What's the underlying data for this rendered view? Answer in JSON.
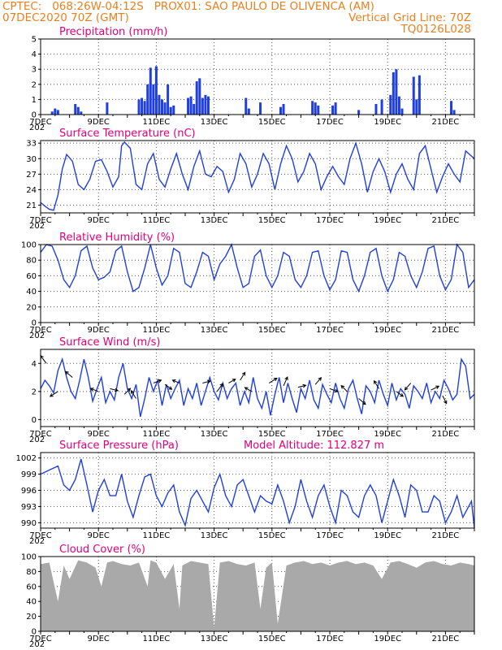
{
  "header": {
    "line1_left": "CPTEC:   068:26W-04:12S   PROX01: SAO PAULO DE OLIVENCA (AM)",
    "line2_left": "07DEC2020 70Z (GMT)",
    "line2_right": "Vertical Grid Line: 70Z",
    "line3_right": "TQ0126L028"
  },
  "colors": {
    "series": "#1f3fe0",
    "bars": "#1f3fe0",
    "cloud": "#a9a9a9",
    "title": "#e0007a",
    "header": "#e8801f"
  },
  "x_axis": {
    "range_days": [
      0,
      15
    ],
    "labels": [
      {
        "d": 0,
        "t": "7DEC"
      },
      {
        "d": 2,
        "t": "9DEC"
      },
      {
        "d": 4,
        "t": "11DEC"
      },
      {
        "d": 6,
        "t": "13DEC"
      },
      {
        "d": 8,
        "t": "15DEC"
      },
      {
        "d": 10,
        "t": "17DEC"
      },
      {
        "d": 12,
        "t": "19DEC"
      },
      {
        "d": 14,
        "t": "21DEC"
      }
    ],
    "year_stub": "202"
  },
  "model_altitude": "Model Altitude: 112.827 m",
  "chart_data": [
    {
      "type": "bar",
      "title": "Precipitation (mm/h)",
      "ylim": [
        0,
        5
      ],
      "yticks": [
        "0",
        "1",
        "2",
        "3",
        "4",
        "5"
      ],
      "x": [
        0.4,
        0.5,
        0.6,
        1.2,
        1.3,
        1.4,
        2.3,
        3.4,
        3.5,
        3.6,
        3.7,
        3.8,
        3.9,
        4.0,
        4.1,
        4.2,
        4.3,
        4.4,
        4.5,
        4.6,
        5.1,
        5.2,
        5.3,
        5.4,
        5.5,
        5.6,
        5.7,
        5.8,
        7.1,
        7.2,
        7.6,
        8.3,
        8.4,
        9.4,
        9.5,
        9.6,
        10.1,
        10.2,
        11.0,
        11.6,
        11.8,
        12.1,
        12.2,
        12.3,
        12.4,
        12.5,
        12.9,
        13.0,
        13.1,
        14.2,
        14.3
      ],
      "values": [
        0.2,
        0.4,
        0.3,
        0.7,
        0.5,
        0.2,
        0.8,
        1.0,
        1.1,
        0.9,
        2.0,
        3.1,
        2.0,
        3.2,
        1.3,
        1.0,
        0.8,
        2.0,
        0.5,
        0.6,
        1.1,
        1.2,
        0.7,
        2.2,
        2.4,
        1.1,
        1.3,
        1.2,
        1.1,
        0.4,
        0.8,
        0.5,
        0.7,
        0.9,
        0.8,
        0.6,
        0.6,
        0.8,
        0.3,
        0.7,
        1.0,
        1.3,
        2.8,
        3.0,
        1.2,
        0.4,
        2.5,
        1.0,
        2.6,
        0.9,
        0.3
      ]
    },
    {
      "type": "line",
      "title": "Surface Temperature (nC)",
      "ylim": [
        19.5,
        33.5
      ],
      "yticks": [
        "21",
        "24",
        "27",
        "30",
        "33"
      ],
      "x": [
        0,
        0.15,
        0.3,
        0.45,
        0.6,
        0.75,
        0.9,
        1.1,
        1.3,
        1.5,
        1.7,
        1.9,
        2.1,
        2.3,
        2.5,
        2.7,
        2.8,
        2.9,
        3.1,
        3.3,
        3.5,
        3.7,
        3.9,
        4.1,
        4.3,
        4.5,
        4.7,
        4.9,
        5.1,
        5.3,
        5.5,
        5.7,
        5.9,
        6.1,
        6.3,
        6.5,
        6.7,
        6.9,
        7.1,
        7.3,
        7.5,
        7.7,
        7.9,
        8.1,
        8.3,
        8.5,
        8.7,
        8.9,
        9.1,
        9.3,
        9.5,
        9.7,
        9.9,
        10.1,
        10.3,
        10.5,
        10.7,
        10.9,
        11.1,
        11.3,
        11.5,
        11.7,
        11.9,
        12.1,
        12.3,
        12.5,
        12.7,
        12.9,
        13.1,
        13.3,
        13.5,
        13.7,
        13.9,
        14.1,
        14.3,
        14.5,
        14.7,
        14.9,
        15
      ],
      "values": [
        21.5,
        20.8,
        20.2,
        20.0,
        23.0,
        28.0,
        30.8,
        29.5,
        25.0,
        24.0,
        26.0,
        29.5,
        29.8,
        27.5,
        24.5,
        26.5,
        32.5,
        33.2,
        32.0,
        25.0,
        24.0,
        29.0,
        31.0,
        26.0,
        24.5,
        28.0,
        31.0,
        27.0,
        24.0,
        28.5,
        31.5,
        27.0,
        26.5,
        28.5,
        27.5,
        23.5,
        26.0,
        31.0,
        29.0,
        24.5,
        27.0,
        31.0,
        29.0,
        24.0,
        29.0,
        32.5,
        30.0,
        25.5,
        27.5,
        31.0,
        29.0,
        24.0,
        26.5,
        28.5,
        26.5,
        25.0,
        30.0,
        33.0,
        29.0,
        23.5,
        27.5,
        30.0,
        27.5,
        23.5,
        27.0,
        29.0,
        26.0,
        24.0,
        31.0,
        32.5,
        28.0,
        23.5,
        26.5,
        29.0,
        27.0,
        25.5,
        31.5,
        30.5,
        30.0
      ]
    },
    {
      "type": "line",
      "title": "Relative Humidity (%)",
      "ylim": [
        0,
        100
      ],
      "yticks": [
        "0",
        "20",
        "40",
        "60",
        "80",
        "100"
      ],
      "x": [
        0,
        0.2,
        0.4,
        0.6,
        0.8,
        1.0,
        1.2,
        1.4,
        1.6,
        1.8,
        2.0,
        2.2,
        2.4,
        2.6,
        2.8,
        3.0,
        3.2,
        3.4,
        3.6,
        3.8,
        4.0,
        4.2,
        4.4,
        4.6,
        4.8,
        5.0,
        5.2,
        5.4,
        5.6,
        5.8,
        6.0,
        6.2,
        6.4,
        6.6,
        6.8,
        7.0,
        7.2,
        7.4,
        7.6,
        7.8,
        8.0,
        8.2,
        8.4,
        8.6,
        8.8,
        9.0,
        9.2,
        9.4,
        9.6,
        9.8,
        10.0,
        10.2,
        10.4,
        10.6,
        10.8,
        11.0,
        11.2,
        11.4,
        11.6,
        11.8,
        12.0,
        12.2,
        12.4,
        12.6,
        12.8,
        13.0,
        13.2,
        13.4,
        13.6,
        13.8,
        14.0,
        14.2,
        14.4,
        14.6,
        14.8,
        15
      ],
      "values": [
        90,
        100,
        98,
        80,
        55,
        45,
        60,
        92,
        98,
        70,
        55,
        58,
        65,
        92,
        98,
        65,
        40,
        45,
        70,
        100,
        70,
        48,
        60,
        95,
        90,
        50,
        45,
        65,
        90,
        85,
        55,
        75,
        85,
        100,
        70,
        45,
        50,
        85,
        93,
        60,
        45,
        60,
        90,
        85,
        55,
        45,
        60,
        90,
        92,
        60,
        42,
        55,
        92,
        90,
        55,
        40,
        60,
        90,
        95,
        60,
        40,
        55,
        90,
        85,
        60,
        45,
        65,
        95,
        98,
        60,
        42,
        55,
        100,
        90,
        45,
        55
      ]
    },
    {
      "type": "line",
      "title": "Surface Wind (m/s)",
      "ylim": [
        -0.5,
        5
      ],
      "yticks": [
        "0",
        "2",
        "4"
      ],
      "x": [
        0,
        0.15,
        0.3,
        0.45,
        0.6,
        0.75,
        0.9,
        1.05,
        1.2,
        1.35,
        1.5,
        1.65,
        1.8,
        1.95,
        2.1,
        2.25,
        2.4,
        2.55,
        2.7,
        2.85,
        3.0,
        3.15,
        3.3,
        3.45,
        3.6,
        3.75,
        3.9,
        4.05,
        4.2,
        4.35,
        4.5,
        4.65,
        4.8,
        4.95,
        5.1,
        5.25,
        5.4,
        5.55,
        5.7,
        5.85,
        6.0,
        6.15,
        6.3,
        6.45,
        6.6,
        6.75,
        6.9,
        7.05,
        7.2,
        7.35,
        7.5,
        7.65,
        7.8,
        7.95,
        8.1,
        8.25,
        8.4,
        8.55,
        8.7,
        8.85,
        9.0,
        9.15,
        9.3,
        9.45,
        9.6,
        9.75,
        9.9,
        10.05,
        10.2,
        10.35,
        10.5,
        10.65,
        10.8,
        10.95,
        11.1,
        11.25,
        11.4,
        11.55,
        11.7,
        11.85,
        12.0,
        12.15,
        12.3,
        12.45,
        12.6,
        12.75,
        12.9,
        13.05,
        13.2,
        13.35,
        13.5,
        13.65,
        13.8,
        13.95,
        14.1,
        14.25,
        14.4,
        14.55,
        14.7,
        14.85,
        15
      ],
      "values": [
        2.2,
        2.8,
        2.4,
        1.9,
        3.5,
        4.3,
        3.0,
        2.0,
        1.5,
        2.8,
        4.3,
        3.0,
        1.3,
        2.2,
        3.0,
        1.2,
        2.0,
        1.4,
        3.0,
        4.0,
        2.2,
        1.5,
        2.5,
        0.2,
        1.5,
        3.0,
        2.0,
        2.8,
        1.0,
        2.5,
        1.5,
        2.2,
        2.8,
        1.0,
        2.2,
        1.5,
        2.6,
        1.0,
        2.0,
        3.0,
        2.0,
        1.4,
        2.6,
        1.5,
        2.2,
        2.6,
        1.0,
        2.0,
        1.2,
        3.0,
        1.5,
        0.8,
        2.0,
        0.3,
        1.8,
        3.0,
        1.2,
        2.6,
        1.5,
        0.5,
        2.2,
        1.5,
        2.8,
        1.4,
        0.8,
        2.5,
        1.8,
        1.2,
        2.6,
        1.5,
        0.8,
        2.2,
        2.8,
        1.5,
        0.4,
        2.4,
        2.0,
        1.2,
        2.8,
        1.8,
        1.0,
        2.6,
        1.4,
        2.2,
        1.8,
        0.8,
        2.4,
        2.0,
        1.5,
        2.6,
        1.2,
        2.0,
        1.5,
        2.8,
        2.2,
        1.4,
        1.8,
        4.3,
        3.8,
        1.5,
        1.8
      ]
    },
    {
      "type": "line",
      "title": "Surface Pressure (hPa)",
      "ylim": [
        989,
        1003
      ],
      "yticks": [
        "990",
        "993",
        "996",
        "999",
        "1002"
      ],
      "x": [
        0,
        0.2,
        0.4,
        0.6,
        0.8,
        1.0,
        1.2,
        1.4,
        1.6,
        1.8,
        2.0,
        2.2,
        2.4,
        2.6,
        2.8,
        3.0,
        3.2,
        3.4,
        3.6,
        3.8,
        4.0,
        4.2,
        4.4,
        4.6,
        4.8,
        5.0,
        5.2,
        5.4,
        5.6,
        5.8,
        6.0,
        6.2,
        6.4,
        6.6,
        6.8,
        7.0,
        7.2,
        7.4,
        7.6,
        7.8,
        8.0,
        8.2,
        8.4,
        8.6,
        8.8,
        9.0,
        9.2,
        9.4,
        9.6,
        9.8,
        10.0,
        10.2,
        10.4,
        10.6,
        10.8,
        11.0,
        11.2,
        11.4,
        11.6,
        11.8,
        12.0,
        12.2,
        12.4,
        12.6,
        12.8,
        13.0,
        13.2,
        13.4,
        13.6,
        13.8,
        14.0,
        14.2,
        14.4,
        14.6,
        14.8,
        14.9,
        15
      ],
      "values": [
        999,
        999.5,
        1000,
        1000.5,
        997,
        996,
        998,
        1001.8,
        997,
        992,
        996,
        998,
        995,
        995,
        999,
        994,
        991,
        995,
        998.5,
        999,
        995,
        993,
        995.5,
        997,
        992,
        989.5,
        994.5,
        996,
        994,
        992,
        996.5,
        999,
        995,
        993,
        997,
        998,
        995,
        992,
        995,
        994,
        993.5,
        997,
        994,
        990,
        993,
        998,
        994,
        991,
        995,
        997,
        993,
        990,
        996,
        995,
        992,
        991,
        995,
        997,
        995,
        990,
        994,
        998,
        995,
        991,
        997,
        996,
        992,
        992,
        995,
        994,
        990,
        992,
        995,
        991,
        993,
        994,
        989
      ]
    },
    {
      "type": "area",
      "title": "Cloud Cover (%)",
      "ylim": [
        0,
        100
      ],
      "yticks": [
        "0",
        "20",
        "40",
        "60",
        "80",
        "100"
      ],
      "x": [
        0,
        0.3,
        0.6,
        0.8,
        1.0,
        1.3,
        1.6,
        1.9,
        2.1,
        2.3,
        2.5,
        2.8,
        3.1,
        3.4,
        3.7,
        3.8,
        4.0,
        4.3,
        4.6,
        4.8,
        4.9,
        5.2,
        5.5,
        5.8,
        6.0,
        6.2,
        6.5,
        6.8,
        7.1,
        7.4,
        7.6,
        7.8,
        8.0,
        8.2,
        8.5,
        8.8,
        9.1,
        9.4,
        9.7,
        10.0,
        10.3,
        10.6,
        10.9,
        11.2,
        11.5,
        11.8,
        12.1,
        12.4,
        12.7,
        13.0,
        13.3,
        13.6,
        13.9,
        14.2,
        14.5,
        14.8,
        15
      ],
      "values": [
        90,
        92,
        40,
        88,
        70,
        95,
        92,
        85,
        60,
        92,
        94,
        90,
        88,
        92,
        60,
        95,
        92,
        70,
        90,
        30,
        88,
        94,
        92,
        90,
        5,
        92,
        94,
        90,
        88,
        92,
        30,
        85,
        92,
        10,
        88,
        92,
        94,
        90,
        92,
        88,
        92,
        94,
        90,
        92,
        88,
        70,
        92,
        94,
        90,
        85,
        92,
        94,
        90,
        88,
        92,
        90,
        88
      ]
    }
  ]
}
